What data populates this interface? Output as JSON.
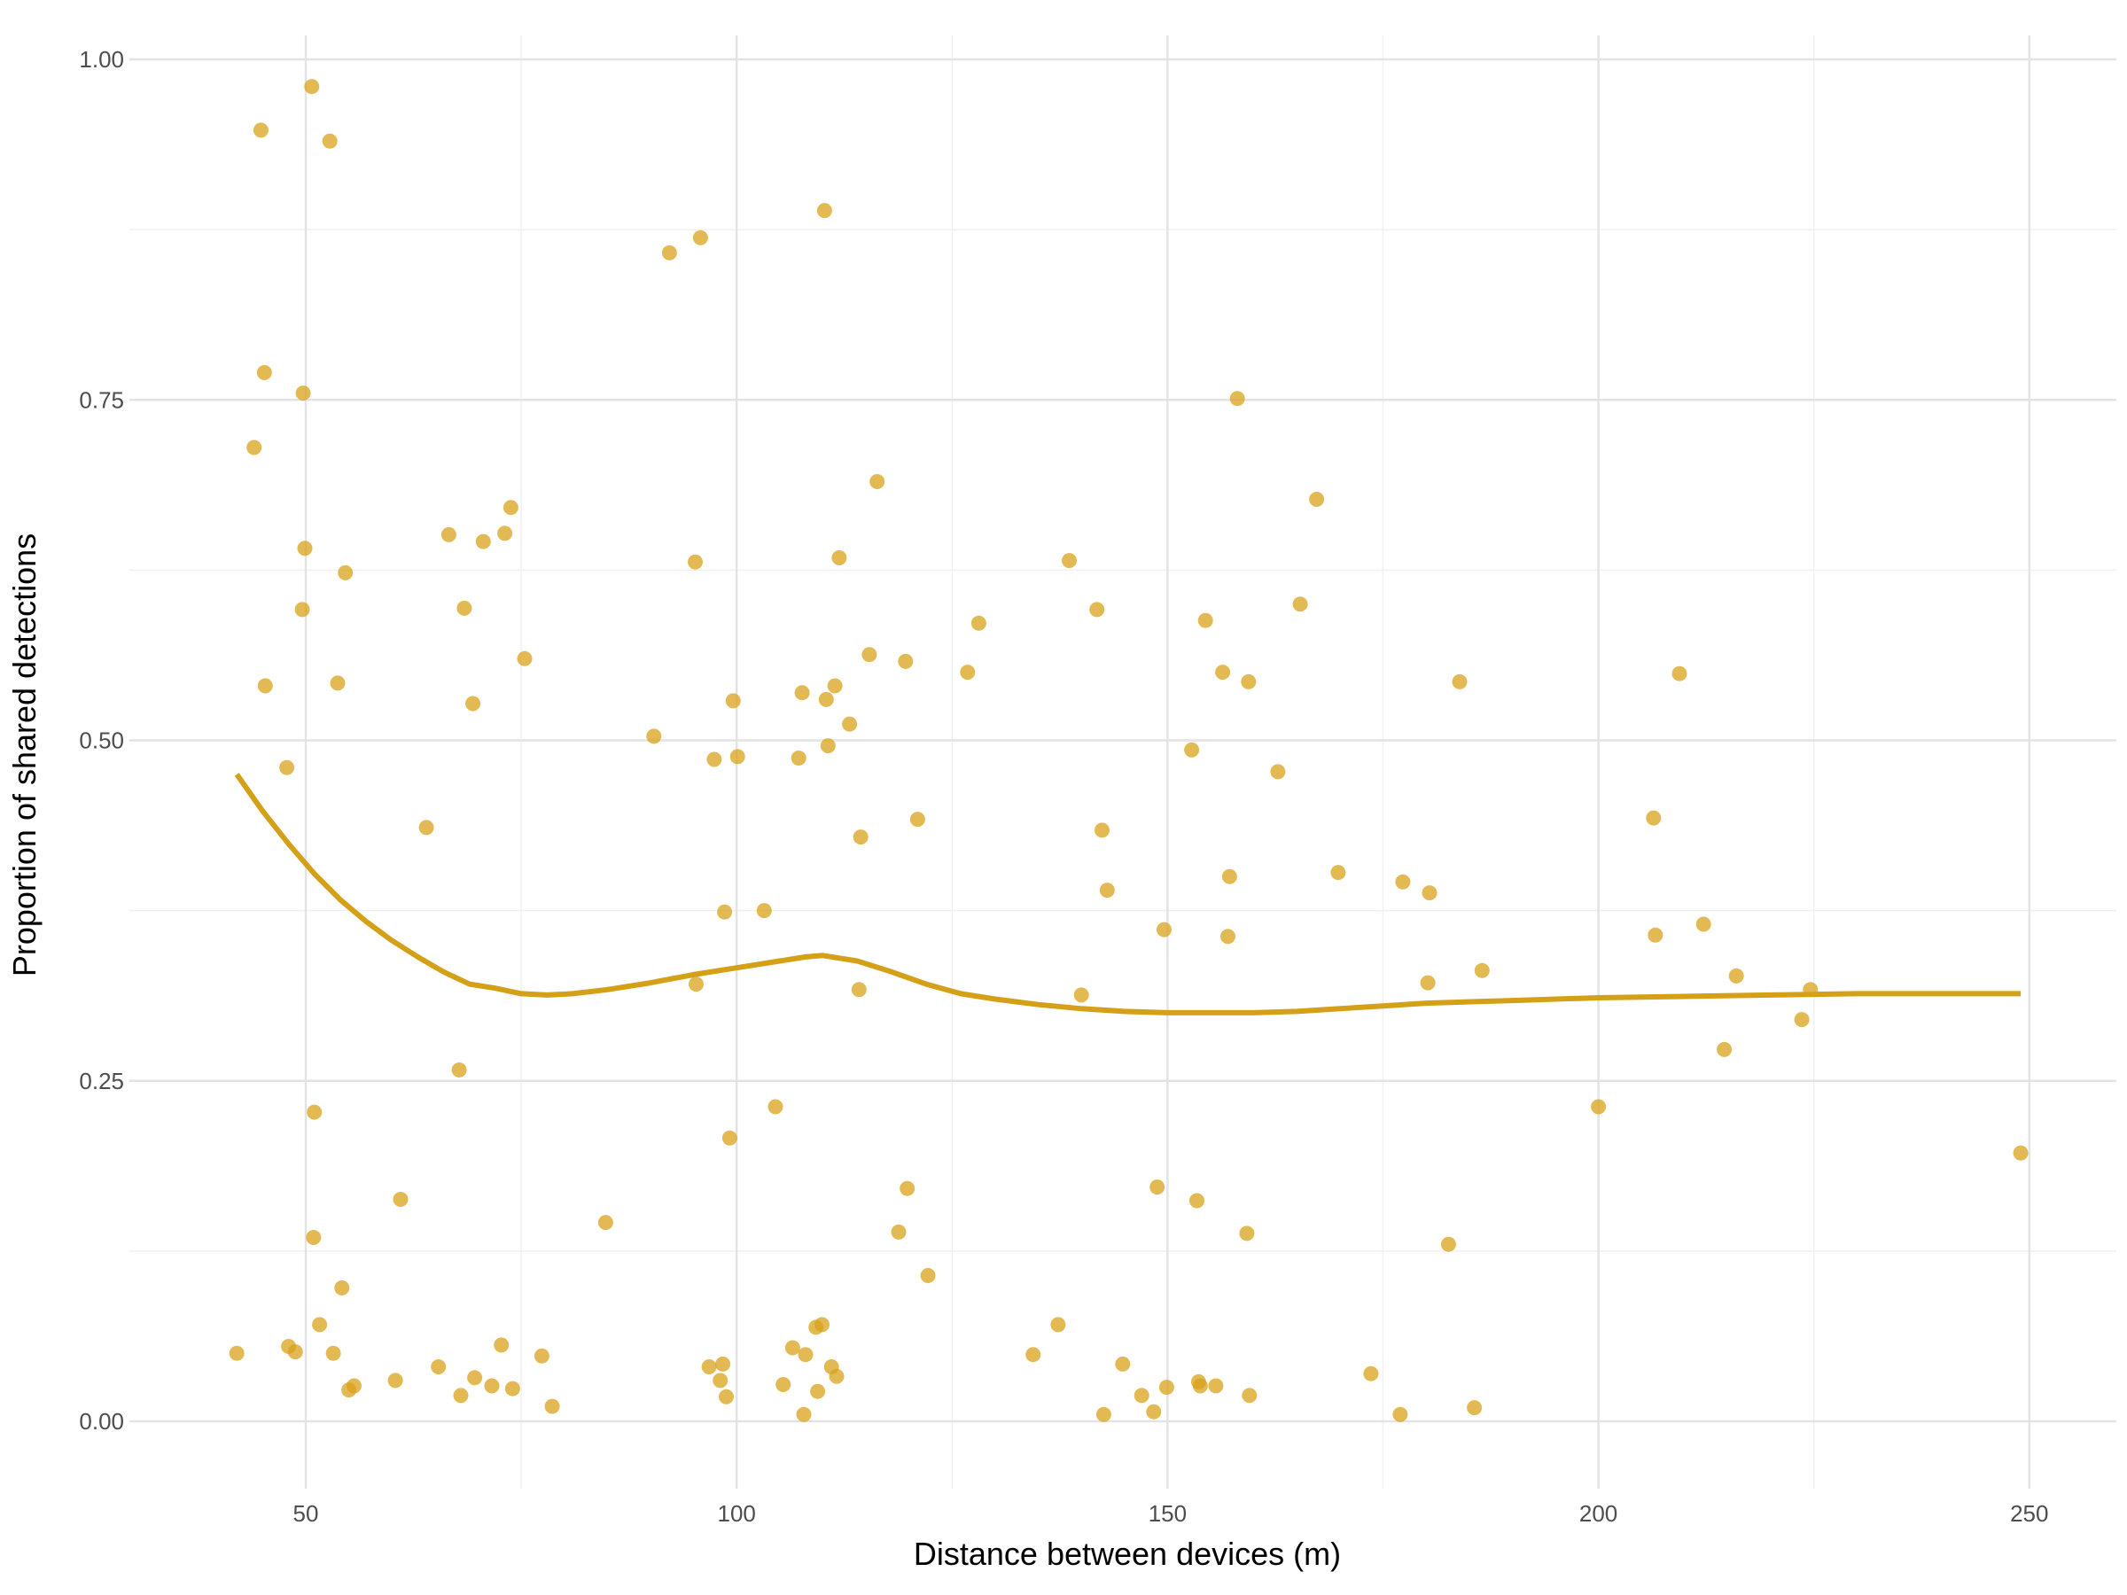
{
  "chart_data": {
    "type": "scatter",
    "title": "",
    "xlabel": "Distance between devices (m)",
    "ylabel": "Proportion of shared detections",
    "xlim": [
      33,
      258
    ],
    "ylim": [
      -0.045,
      1.03
    ],
    "x_ticks": [
      50,
      100,
      150,
      200,
      250
    ],
    "x_tick_labels": [
      "50",
      "100",
      "150",
      "200",
      "250"
    ],
    "x_minor_ticks": [
      75,
      125,
      175,
      225
    ],
    "y_ticks": [
      0,
      0.25,
      0.5,
      0.75,
      1.0
    ],
    "y_tick_labels": [
      "0.00",
      "0.25",
      "0.50",
      "0.75",
      "1.00"
    ],
    "y_minor_ticks": [
      0.125,
      0.375,
      0.625,
      0.875
    ],
    "grid": true,
    "legend": "none",
    "colors": {
      "points": "#d9a21b",
      "line": "#d4a017"
    },
    "series": [
      {
        "type": "scatter",
        "points": [
          [
            42,
            0.05
          ],
          [
            44,
            0.715
          ],
          [
            44.8,
            0.948
          ],
          [
            45.2,
            0.77
          ],
          [
            45.3,
            0.54
          ],
          [
            47.8,
            0.48
          ],
          [
            48,
            0.055
          ],
          [
            48.8,
            0.051
          ],
          [
            49.6,
            0.596
          ],
          [
            49.7,
            0.755
          ],
          [
            49.9,
            0.641
          ],
          [
            50.7,
            0.98
          ],
          [
            50.9,
            0.135
          ],
          [
            51,
            0.227
          ],
          [
            51.6,
            0.071
          ],
          [
            52.8,
            0.94
          ],
          [
            53.2,
            0.05
          ],
          [
            53.7,
            0.542
          ],
          [
            54.2,
            0.098
          ],
          [
            54.6,
            0.623
          ],
          [
            55,
            0.023
          ],
          [
            55.6,
            0.026
          ],
          [
            60.4,
            0.03
          ],
          [
            61,
            0.163
          ],
          [
            64,
            0.436
          ],
          [
            65.4,
            0.04
          ],
          [
            66.6,
            0.651
          ],
          [
            67.8,
            0.258
          ],
          [
            68,
            0.019
          ],
          [
            68.4,
            0.597
          ],
          [
            69.4,
            0.527
          ],
          [
            69.6,
            0.032
          ],
          [
            70.6,
            0.646
          ],
          [
            71.6,
            0.026
          ],
          [
            72.7,
            0.056
          ],
          [
            73.1,
            0.652
          ],
          [
            73.8,
            0.671
          ],
          [
            74,
            0.024
          ],
          [
            75.4,
            0.56
          ],
          [
            77.4,
            0.048
          ],
          [
            78.6,
            0.011
          ],
          [
            84.8,
            0.146
          ],
          [
            90.4,
            0.503
          ],
          [
            92.2,
            0.858
          ],
          [
            95.2,
            0.631
          ],
          [
            95.3,
            0.321
          ],
          [
            95.8,
            0.869
          ],
          [
            96.8,
            0.04
          ],
          [
            97.4,
            0.486
          ],
          [
            98.1,
            0.03
          ],
          [
            98.4,
            0.042
          ],
          [
            98.6,
            0.374
          ],
          [
            98.8,
            0.018
          ],
          [
            99.2,
            0.208
          ],
          [
            99.6,
            0.529
          ],
          [
            100.1,
            0.488
          ],
          [
            103.2,
            0.375
          ],
          [
            104.5,
            0.231
          ],
          [
            105.4,
            0.027
          ],
          [
            106.5,
            0.054
          ],
          [
            107.2,
            0.487
          ],
          [
            107.6,
            0.535
          ],
          [
            107.8,
            0.005
          ],
          [
            108,
            0.049
          ],
          [
            109.2,
            0.069
          ],
          [
            109.4,
            0.022
          ],
          [
            109.9,
            0.071
          ],
          [
            110.2,
            0.889
          ],
          [
            110.4,
            0.53
          ],
          [
            110.6,
            0.496
          ],
          [
            111,
            0.04
          ],
          [
            111.4,
            0.54
          ],
          [
            111.6,
            0.033
          ],
          [
            111.9,
            0.634
          ],
          [
            113.1,
            0.512
          ],
          [
            114.2,
            0.317
          ],
          [
            114.4,
            0.429
          ],
          [
            115.4,
            0.563
          ],
          [
            116.3,
            0.69
          ],
          [
            119.6,
            0.558
          ],
          [
            119.8,
            0.171
          ],
          [
            118.8,
            0.139
          ],
          [
            121,
            0.442
          ],
          [
            122.2,
            0.107
          ],
          [
            126.8,
            0.55
          ],
          [
            128.1,
            0.586
          ],
          [
            134.4,
            0.049
          ],
          [
            137.3,
            0.071
          ],
          [
            138.6,
            0.632
          ],
          [
            140,
            0.313
          ],
          [
            141.8,
            0.596
          ],
          [
            142.4,
            0.434
          ],
          [
            142.6,
            0.005
          ],
          [
            143,
            0.39
          ],
          [
            144.8,
            0.042
          ],
          [
            147,
            0.019
          ],
          [
            148.4,
            0.007
          ],
          [
            148.8,
            0.172
          ],
          [
            149.6,
            0.361
          ],
          [
            149.9,
            0.025
          ],
          [
            152.8,
            0.493
          ],
          [
            153.4,
            0.162
          ],
          [
            153.6,
            0.029
          ],
          [
            153.8,
            0.026
          ],
          [
            154.4,
            0.588
          ],
          [
            155.6,
            0.026
          ],
          [
            156.4,
            0.55
          ],
          [
            157,
            0.356
          ],
          [
            157.2,
            0.4
          ],
          [
            158.1,
            0.751
          ],
          [
            159.4,
            0.543
          ],
          [
            159.5,
            0.019
          ],
          [
            159.2,
            0.138
          ],
          [
            162.8,
            0.477
          ],
          [
            165.4,
            0.6
          ],
          [
            167.3,
            0.677
          ],
          [
            169.8,
            0.403
          ],
          [
            173.6,
            0.035
          ],
          [
            177,
            0.005
          ],
          [
            177.3,
            0.396
          ],
          [
            180.2,
            0.322
          ],
          [
            180.4,
            0.388
          ],
          [
            182.6,
            0.13
          ],
          [
            183.9,
            0.543
          ],
          [
            185.6,
            0.01
          ],
          [
            186.5,
            0.331
          ],
          [
            200,
            0.231
          ],
          [
            206.4,
            0.443
          ],
          [
            206.6,
            0.357
          ],
          [
            209.4,
            0.549
          ],
          [
            212.2,
            0.365
          ],
          [
            214.6,
            0.273
          ],
          [
            216,
            0.327
          ],
          [
            223.6,
            0.295
          ],
          [
            224.6,
            0.317
          ],
          [
            249,
            0.197
          ]
        ]
      },
      {
        "type": "line",
        "points": [
          [
            42,
            0.475
          ],
          [
            45,
            0.448
          ],
          [
            48,
            0.424
          ],
          [
            51,
            0.402
          ],
          [
            54,
            0.383
          ],
          [
            57,
            0.367
          ],
          [
            60,
            0.353
          ],
          [
            63,
            0.341
          ],
          [
            66,
            0.33
          ],
          [
            69,
            0.321
          ],
          [
            72,
            0.318
          ],
          [
            75,
            0.314
          ],
          [
            78,
            0.313
          ],
          [
            81,
            0.314
          ],
          [
            85,
            0.317
          ],
          [
            90,
            0.322
          ],
          [
            95,
            0.328
          ],
          [
            100,
            0.333
          ],
          [
            105,
            0.338
          ],
          [
            108,
            0.341
          ],
          [
            110,
            0.342
          ],
          [
            114,
            0.338
          ],
          [
            118,
            0.33
          ],
          [
            122,
            0.321
          ],
          [
            126,
            0.314
          ],
          [
            130,
            0.31
          ],
          [
            135,
            0.306
          ],
          [
            140,
            0.303
          ],
          [
            145,
            0.301
          ],
          [
            150,
            0.3
          ],
          [
            155,
            0.3
          ],
          [
            160,
            0.3
          ],
          [
            165,
            0.301
          ],
          [
            170,
            0.303
          ],
          [
            175,
            0.305
          ],
          [
            180,
            0.307
          ],
          [
            190,
            0.309
          ],
          [
            200,
            0.311
          ],
          [
            210,
            0.312
          ],
          [
            220,
            0.313
          ],
          [
            230,
            0.314
          ],
          [
            240,
            0.314
          ],
          [
            249,
            0.314
          ]
        ]
      }
    ]
  }
}
